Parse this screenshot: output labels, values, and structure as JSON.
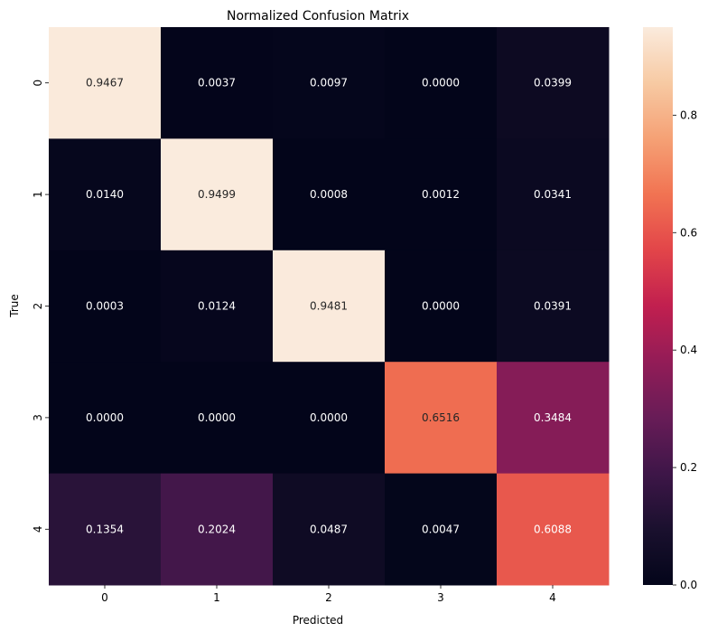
{
  "chart_data": {
    "type": "heatmap",
    "title": "Normalized Confusion Matrix",
    "xlabel": "Predicted",
    "ylabel": "True",
    "x_categories": [
      "0",
      "1",
      "2",
      "3",
      "4"
    ],
    "y_categories": [
      "0",
      "1",
      "2",
      "3",
      "4"
    ],
    "values": [
      [
        0.9467,
        0.0037,
        0.0097,
        0.0,
        0.0399
      ],
      [
        0.014,
        0.9499,
        0.0008,
        0.0012,
        0.0341
      ],
      [
        0.0003,
        0.0124,
        0.9481,
        0.0,
        0.0391
      ],
      [
        0.0,
        0.0,
        0.0,
        0.6516,
        0.3484
      ],
      [
        0.1354,
        0.2024,
        0.0487,
        0.0047,
        0.6088
      ]
    ],
    "value_format": "4 decimals",
    "colormap": "rocket",
    "colorbar": {
      "range": [
        0,
        0.9499
      ],
      "ticks": [
        0.0,
        0.2,
        0.4,
        0.6,
        0.8
      ],
      "tick_labels": [
        "0.0",
        "0.2",
        "0.4",
        "0.6",
        "0.8"
      ]
    },
    "grid": false
  }
}
